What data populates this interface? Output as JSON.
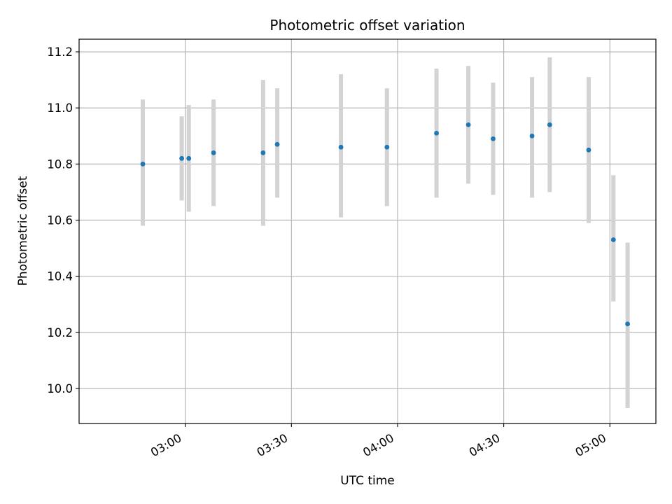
{
  "chart_data": {
    "type": "scatter",
    "title": "Photometric offset variation",
    "xlabel": "UTC time",
    "ylabel": "Photometric offset",
    "x_tick_labels": [
      "03:00",
      "03:30",
      "04:00",
      "04:30",
      "05:00"
    ],
    "x_tick_minutes": [
      180,
      210,
      240,
      270,
      300
    ],
    "xlim_minutes": [
      150,
      313
    ],
    "y_ticks": [
      10.0,
      10.2,
      10.4,
      10.6,
      10.8,
      11.0,
      11.2
    ],
    "y_tick_labels": [
      "10.0",
      "10.2",
      "10.4",
      "10.6",
      "10.8",
      "11.0",
      "11.2"
    ],
    "ylim": [
      9.875,
      11.245
    ],
    "grid": true,
    "series": [
      {
        "marker_color": "#1f77b4",
        "errorbar_color": "#d3d3d3",
        "points": [
          {
            "time": "02:48",
            "y": 10.8,
            "low": 10.58,
            "high": 11.03
          },
          {
            "time": "02:59",
            "y": 10.82,
            "low": 10.67,
            "high": 10.97
          },
          {
            "time": "03:01",
            "y": 10.82,
            "low": 10.63,
            "high": 11.01
          },
          {
            "time": "03:08",
            "y": 10.84,
            "low": 10.65,
            "high": 11.03
          },
          {
            "time": "03:22",
            "y": 10.84,
            "low": 10.58,
            "high": 11.1
          },
          {
            "time": "03:26",
            "y": 10.87,
            "low": 10.68,
            "high": 11.07
          },
          {
            "time": "03:44",
            "y": 10.86,
            "low": 10.61,
            "high": 11.12
          },
          {
            "time": "03:57",
            "y": 10.86,
            "low": 10.65,
            "high": 11.07
          },
          {
            "time": "04:11",
            "y": 10.91,
            "low": 10.68,
            "high": 11.14
          },
          {
            "time": "04:20",
            "y": 10.94,
            "low": 10.73,
            "high": 11.15
          },
          {
            "time": "04:27",
            "y": 10.89,
            "low": 10.69,
            "high": 11.09
          },
          {
            "time": "04:38",
            "y": 10.9,
            "low": 10.68,
            "high": 11.11
          },
          {
            "time": "04:43",
            "y": 10.94,
            "low": 10.7,
            "high": 11.18
          },
          {
            "time": "04:54",
            "y": 10.85,
            "low": 10.59,
            "high": 11.11
          },
          {
            "time": "05:01",
            "y": 10.53,
            "low": 10.31,
            "high": 10.76
          },
          {
            "time": "05:05",
            "y": 10.23,
            "low": 9.93,
            "high": 10.52
          }
        ]
      }
    ]
  }
}
